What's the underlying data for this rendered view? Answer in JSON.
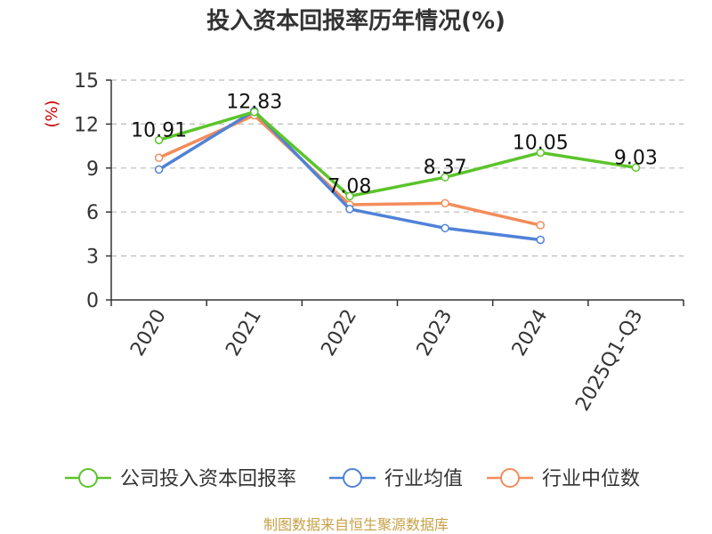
{
  "chart_data": {
    "type": "line",
    "title": "投入资本回报率历年情况(%)",
    "ylabel": "(%)",
    "ylim": [
      0,
      15
    ],
    "yticks": [
      0,
      3,
      6,
      9,
      12,
      15
    ],
    "categories": [
      "2020",
      "2021",
      "2022",
      "2023",
      "2024",
      "2025Q1-Q3"
    ],
    "grid": true,
    "legend_position": "bottom",
    "series": [
      {
        "name": "公司投入资本回报率",
        "color": "#5bc42b",
        "values": [
          10.91,
          12.83,
          7.08,
          8.37,
          10.05,
          9.03
        ],
        "labels": [
          "10.91",
          "12.83",
          "7.08",
          "8.37",
          "10.05",
          "9.03"
        ]
      },
      {
        "name": "行业均值",
        "color": "#4f82d8",
        "values": [
          8.9,
          12.9,
          6.2,
          4.9,
          4.1,
          null
        ]
      },
      {
        "name": "行业中位数",
        "color": "#f48c5a",
        "values": [
          9.7,
          12.6,
          6.5,
          6.6,
          5.1,
          null
        ]
      }
    ]
  },
  "source": "制图数据来自恒生聚源数据库"
}
